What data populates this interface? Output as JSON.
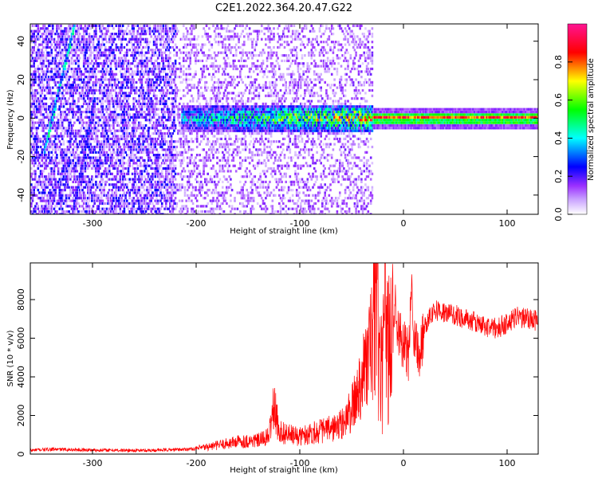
{
  "title": "C2E1.2022.364.20.47.G22",
  "chart_data": [
    {
      "type": "heatmap",
      "xlabel": "Height of straight line (km)",
      "ylabel": "Frequency (Hz)",
      "xlim": [
        -360,
        130
      ],
      "ylim": [
        -50,
        49
      ],
      "xticks": [
        -300,
        -200,
        -100,
        0,
        100
      ],
      "yticks": [
        -40,
        -20,
        0,
        20,
        40
      ],
      "colorbar": {
        "label": "Normalized spectral amplitude",
        "range": [
          0,
          1
        ],
        "ticks": [
          0.0,
          0.2,
          0.4,
          0.6,
          0.8
        ],
        "colors": [
          "#ffffff",
          "#9b30ff",
          "#0000ff",
          "#00ffff",
          "#00ff00",
          "#ffff00",
          "#ff0000",
          "#ff1493"
        ]
      },
      "features": [
        {
          "kind": "diagonal_streak",
          "from": [
            -345,
            -12
          ],
          "to": [
            -318,
            49
          ],
          "amplitude": 0.35
        },
        {
          "kind": "diagonal_streak",
          "from": [
            -320,
            -50
          ],
          "to": [
            -300,
            5
          ],
          "amplitude": 0.2
        },
        {
          "kind": "band",
          "x_range": [
            -215,
            -30
          ],
          "center": 0,
          "halfwidth": 7,
          "amplitude": 0.3
        },
        {
          "kind": "line",
          "x_range": [
            -30,
            130
          ],
          "center": 0,
          "halfwidth": 1,
          "amplitude": 0.95
        }
      ]
    },
    {
      "type": "line",
      "xlabel": "Height of straight line (km)",
      "ylabel": "SNR (10 * v/v)",
      "xlim": [
        -360,
        130
      ],
      "ylim": [
        0,
        9900
      ],
      "xticks": [
        -300,
        -200,
        -100,
        0,
        100
      ],
      "yticks": [
        0,
        2000,
        4000,
        6000,
        8000
      ],
      "series": [
        {
          "color": "#ff0000",
          "x": [
            -360,
            -340,
            -320,
            -300,
            -280,
            -260,
            -240,
            -220,
            -200,
            -180,
            -160,
            -140,
            -130,
            -125,
            -120,
            -110,
            -100,
            -90,
            -80,
            -70,
            -60,
            -50,
            -45,
            -40,
            -35,
            -30,
            -26,
            -24,
            -20,
            -18,
            -15,
            -12,
            -10,
            -8,
            -5,
            0,
            5,
            8,
            10,
            15,
            20,
            25,
            30,
            40,
            50,
            60,
            70,
            80,
            90,
            100,
            110,
            120,
            130
          ],
          "y": [
            200,
            250,
            230,
            210,
            200,
            190,
            200,
            230,
            280,
            450,
            650,
            700,
            900,
            2500,
            1200,
            1000,
            900,
            1100,
            1200,
            1300,
            1500,
            2300,
            3000,
            4200,
            4800,
            6000,
            9700,
            5000,
            3800,
            7000,
            5500,
            5800,
            6200,
            8500,
            6200,
            5600,
            5000,
            8800,
            6500,
            5000,
            6500,
            7200,
            7500,
            7300,
            7200,
            7000,
            6800,
            6600,
            6500,
            6800,
            7100,
            7000,
            6900
          ]
        }
      ]
    }
  ]
}
